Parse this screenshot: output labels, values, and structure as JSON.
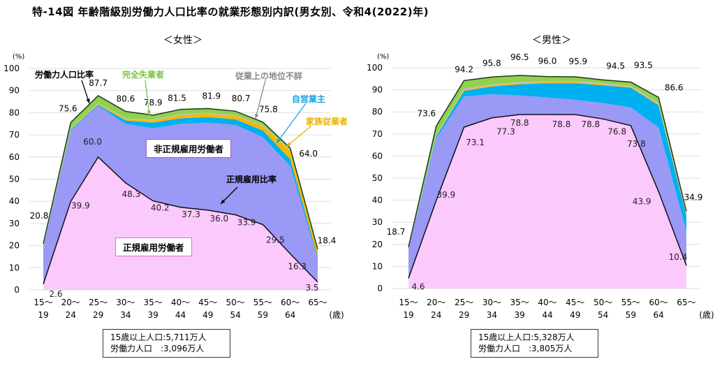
{
  "title": "特-14図 年齢階級別労働力人口比率の就業形態別内訳(男女別、令和4(2022)年)",
  "colors": {
    "regular": "#fbc9fb",
    "nonregular": "#9a99f6",
    "self_employed": "#00b0f0",
    "family_worker": "#f5b800",
    "status_unknown": "#bfbfbf",
    "unemployed": "#92d050"
  },
  "chart_data": [
    {
      "type": "area",
      "stacked": true,
      "title": "＜女性＞",
      "ylabel": "(%)",
      "xlabel": "(歳)",
      "ylim": [
        0,
        100
      ],
      "yticks": [
        0,
        10,
        20,
        30,
        40,
        50,
        60,
        70,
        80,
        90,
        100
      ],
      "grid": true,
      "categories": [
        [
          "15～",
          "19"
        ],
        [
          "20～",
          "24"
        ],
        [
          "25～",
          "29"
        ],
        [
          "30～",
          "34"
        ],
        [
          "35～",
          "39"
        ],
        [
          "40～",
          "44"
        ],
        [
          "45～",
          "49"
        ],
        [
          "50～",
          "54"
        ],
        [
          "55～",
          "59"
        ],
        [
          "60～",
          "64"
        ],
        [
          "65～",
          ""
        ]
      ],
      "series": [
        {
          "name": "正規雇用労働者",
          "key": "regular",
          "values": [
            2.6,
            39.9,
            60.0,
            48.3,
            40.2,
            37.3,
            36.0,
            33.9,
            29.5,
            16.3,
            3.5
          ]
        },
        {
          "name": "非正規雇用労働者",
          "key": "nonregular",
          "values": [
            16.9,
            32.1,
            23.0,
            26.7,
            32.8,
            37.7,
            39.5,
            40.6,
            39.5,
            39.7,
            10.5
          ]
        },
        {
          "name": "自営業主",
          "key": "self_employed",
          "values": [
            0.1,
            0.5,
            0.5,
            1.5,
            2.5,
            2.5,
            2.5,
            2.5,
            3.0,
            3.0,
            1.0
          ]
        },
        {
          "name": "家族従業者",
          "key": "family_worker",
          "values": [
            0.1,
            0.2,
            0.5,
            0.5,
            1.0,
            1.5,
            1.5,
            1.5,
            2.0,
            4.0,
            2.5
          ]
        },
        {
          "name": "従業上の地位不詳",
          "key": "status_unknown",
          "values": [
            0.3,
            0.3,
            0.4,
            0.4,
            0.4,
            0.4,
            0.4,
            0.4,
            0.4,
            0.4,
            0.3
          ]
        },
        {
          "name": "完全失業者",
          "key": "unemployed",
          "values": [
            0.8,
            2.6,
            3.3,
            3.2,
            2.0,
            2.1,
            2.0,
            1.8,
            1.4,
            0.6,
            0.6
          ]
        }
      ],
      "lines": {
        "labor_force_ratio": {
          "name": "労働力人口比率",
          "values": [
            20.8,
            75.6,
            87.7,
            80.6,
            78.9,
            81.5,
            81.9,
            80.7,
            75.8,
            64.0,
            18.4
          ]
        },
        "regular_ratio": {
          "name": "正規雇用比率",
          "values": [
            2.6,
            39.9,
            60.0,
            48.3,
            40.2,
            37.3,
            36.0,
            33.9,
            29.5,
            16.3,
            3.5
          ]
        }
      },
      "annotations": {
        "labor_force_ratio": "労働力人口比率",
        "unemployed": "完全失業者",
        "status_unknown": "従業上の地位不詳",
        "self_employed": "自営業主",
        "family_worker": "家族従業者",
        "nonregular": "非正規雇用労働者",
        "regular_ratio": "正規雇用比率",
        "regular": "正規雇用労働者"
      },
      "population_box": [
        "15歳以上人口:5,711万人",
        "労働力人口　:3,096万人"
      ]
    },
    {
      "type": "area",
      "stacked": true,
      "title": "＜男性＞",
      "ylabel": "(%)",
      "xlabel": "(歳)",
      "ylim": [
        0,
        100
      ],
      "yticks": [
        0,
        10,
        20,
        30,
        40,
        50,
        60,
        70,
        80,
        90,
        100
      ],
      "grid": true,
      "categories": [
        [
          "15～",
          "19"
        ],
        [
          "20～",
          "24"
        ],
        [
          "25～",
          "29"
        ],
        [
          "30～",
          "34"
        ],
        [
          "35～",
          "39"
        ],
        [
          "40～",
          "44"
        ],
        [
          "45～",
          "49"
        ],
        [
          "50～",
          "54"
        ],
        [
          "55～",
          "59"
        ],
        [
          "60～",
          "64"
        ],
        [
          "65～",
          ""
        ]
      ],
      "series": [
        {
          "name": "正規雇用労働者",
          "key": "regular",
          "values": [
            4.6,
            39.9,
            73.1,
            77.3,
            78.8,
            78.8,
            78.8,
            76.8,
            73.8,
            43.9,
            10.4
          ]
        },
        {
          "name": "非正規雇用労働者",
          "key": "nonregular",
          "values": [
            13.4,
            28.1,
            13.9,
            10.7,
            8.7,
            7.7,
            6.7,
            7.2,
            8.2,
            29.1,
            15.6
          ]
        },
        {
          "name": "自営業主",
          "key": "self_employed",
          "values": [
            0.2,
            1.0,
            2.5,
            3.5,
            5.0,
            6.5,
            7.5,
            8.0,
            9.0,
            10.0,
            7.0
          ]
        },
        {
          "name": "家族従業者",
          "key": "family_worker",
          "values": [
            0.1,
            0.3,
            0.5,
            0.5,
            0.5,
            0.5,
            0.5,
            0.5,
            0.3,
            0.5,
            0.5
          ]
        },
        {
          "name": "従業上の地位不詳",
          "key": "status_unknown",
          "values": [
            0.2,
            0.4,
            0.5,
            0.5,
            0.5,
            0.5,
            0.5,
            0.5,
            0.5,
            0.5,
            0.4
          ]
        },
        {
          "name": "完全失業者",
          "key": "unemployed",
          "values": [
            0.2,
            3.9,
            3.7,
            3.3,
            3.0,
            2.0,
            1.9,
            1.5,
            1.7,
            2.6,
            1.0
          ]
        }
      ],
      "lines": {
        "labor_force_ratio": {
          "name": "労働力人口比率",
          "values": [
            18.7,
            73.6,
            94.2,
            95.8,
            96.5,
            96.0,
            95.9,
            94.5,
            93.5,
            86.6,
            34.9
          ]
        },
        "regular_ratio": {
          "name": "正規雇用比率",
          "values": [
            4.6,
            39.9,
            73.1,
            77.3,
            78.8,
            78.8,
            78.8,
            76.8,
            73.8,
            43.9,
            10.4
          ]
        }
      },
      "population_box": [
        "15歳以上人口:5,328万人",
        "労働力人口　:3,805万人"
      ]
    }
  ]
}
